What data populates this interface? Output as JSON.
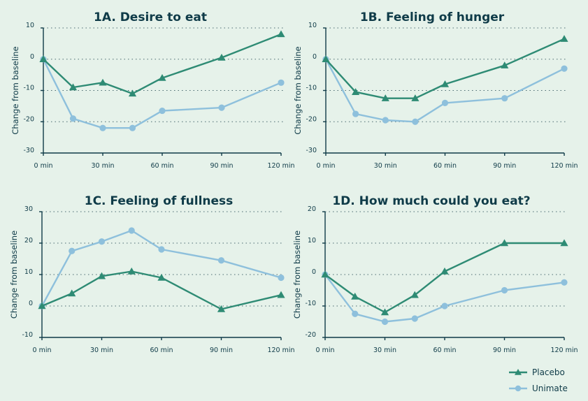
{
  "colors": {
    "placebo": "#2e8b74",
    "unimate": "#8ec0dc",
    "text": "#0f3b48",
    "background": "#e6f2ea"
  },
  "legend": {
    "placement": "bottom-right",
    "entries": [
      "Placebo",
      "Unimate"
    ]
  },
  "chart_data": [
    {
      "type": "line",
      "title": "1A. Desire to eat",
      "ylabel": "Change from baseline",
      "xlabel": "",
      "x": [
        0,
        15,
        30,
        45,
        60,
        90,
        120
      ],
      "xticks": [
        0,
        30,
        60,
        90,
        120
      ],
      "xtick_labels": [
        "0 min",
        "30 min",
        "60 min",
        "90 min",
        "120 min"
      ],
      "ylim": [
        -30,
        10
      ],
      "yticks": [
        10,
        0,
        -10,
        -20,
        -30
      ],
      "ytick_labels": [
        "10",
        "0",
        "-10",
        "-20",
        "-30"
      ],
      "grid": true,
      "series": [
        {
          "name": "Placebo",
          "marker": "triangle",
          "values": [
            0,
            -9,
            -7.5,
            -11,
            -6,
            0.5,
            8
          ]
        },
        {
          "name": "Unimate",
          "marker": "circle",
          "values": [
            0,
            -19,
            -22,
            -22,
            -16.5,
            -15.5,
            -7.5
          ]
        }
      ]
    },
    {
      "type": "line",
      "title": "1B. Feeling of hunger",
      "ylabel": "Change from baseline",
      "xlabel": "",
      "x": [
        0,
        15,
        30,
        45,
        60,
        90,
        120
      ],
      "xticks": [
        0,
        30,
        60,
        90,
        120
      ],
      "xtick_labels": [
        "0 min",
        "30 min",
        "60 min",
        "90 min",
        "120 min"
      ],
      "ylim": [
        -30,
        10
      ],
      "yticks": [
        10,
        0,
        -10,
        -20,
        -30
      ],
      "ytick_labels": [
        "10",
        "0",
        "-10",
        "-20",
        "-30"
      ],
      "grid": true,
      "series": [
        {
          "name": "Placebo",
          "marker": "triangle",
          "values": [
            0,
            -10.5,
            -12.5,
            -12.5,
            -8,
            -2,
            6.5
          ]
        },
        {
          "name": "Unimate",
          "marker": "circle",
          "values": [
            0,
            -17.5,
            -19.5,
            -20,
            -14,
            -12.5,
            -3
          ]
        }
      ]
    },
    {
      "type": "line",
      "title": "1C. Feeling of fullness",
      "ylabel": "Change from baseline",
      "xlabel": "",
      "x": [
        0,
        15,
        30,
        45,
        60,
        90,
        120
      ],
      "xticks": [
        0,
        30,
        60,
        90,
        120
      ],
      "xtick_labels": [
        "0 min",
        "30 min",
        "60 min",
        "90 min",
        "120 min"
      ],
      "ylim": [
        -10,
        30
      ],
      "yticks": [
        30,
        20,
        10,
        0,
        -10
      ],
      "ytick_labels": [
        "30",
        "20",
        "10",
        "0",
        "-10"
      ],
      "grid": true,
      "series": [
        {
          "name": "Placebo",
          "marker": "triangle",
          "values": [
            0,
            4,
            9.5,
            11,
            9,
            -1,
            3.5
          ]
        },
        {
          "name": "Unimate",
          "marker": "circle",
          "values": [
            0,
            17.5,
            20.5,
            24,
            18,
            14.5,
            9
          ]
        }
      ]
    },
    {
      "type": "line",
      "title": "1D. How much could you eat?",
      "ylabel": "Change from baseline",
      "xlabel": "",
      "x": [
        0,
        15,
        30,
        45,
        60,
        90,
        120
      ],
      "xticks": [
        0,
        30,
        60,
        90,
        120
      ],
      "xtick_labels": [
        "0 min",
        "30 min",
        "60 min",
        "90 min",
        "120 min"
      ],
      "ylim": [
        -20,
        20
      ],
      "yticks": [
        20,
        10,
        0,
        -10,
        -20
      ],
      "ytick_labels": [
        "20",
        "10",
        "0",
        "-10",
        "-20"
      ],
      "grid": true,
      "series": [
        {
          "name": "Placebo",
          "marker": "triangle",
          "values": [
            0,
            -7,
            -12,
            -6.5,
            1,
            10,
            10
          ]
        },
        {
          "name": "Unimate",
          "marker": "circle",
          "values": [
            0,
            -12.5,
            -15,
            -14,
            -10,
            -5,
            -2.5
          ]
        }
      ]
    }
  ]
}
